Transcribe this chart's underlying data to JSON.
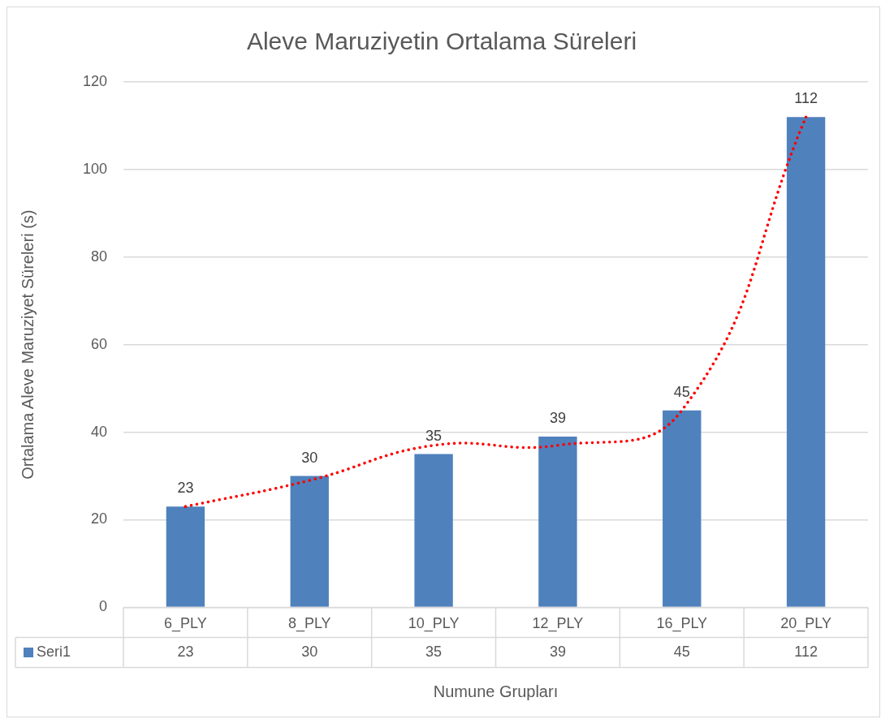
{
  "chart_data": {
    "type": "bar",
    "title": "Aleve Maruziyetin Ortalama Süreleri",
    "xlabel": "Numune Grupları",
    "ylabel": "Ortalama Aleve Maruziyet Süreleri (s)",
    "categories": [
      "6_PLY",
      "8_PLY",
      "10_PLY",
      "12_PLY",
      "16_PLY",
      "20_PLY"
    ],
    "series": [
      {
        "name": "Seri1",
        "color": "#4f81bd",
        "values": [
          23,
          30,
          35,
          39,
          45,
          112
        ],
        "value_labels": [
          "23",
          "30",
          "35",
          "39",
          "45",
          "112"
        ]
      },
      {
        "type": "line",
        "color": "#ff0000",
        "line_style": "dotted",
        "marker": "none",
        "x": [
          "6_PLY",
          "8_PLY",
          "10_PLY",
          "12_PLY",
          "16_PLY",
          "20_PLY"
        ],
        "values": [
          23,
          29,
          37,
          37,
          45,
          112
        ]
      }
    ],
    "ylim": [
      0,
      120
    ],
    "yticks": [
      0,
      20,
      40,
      60,
      80,
      100,
      120
    ],
    "grid": "y",
    "legend": "bottom"
  }
}
